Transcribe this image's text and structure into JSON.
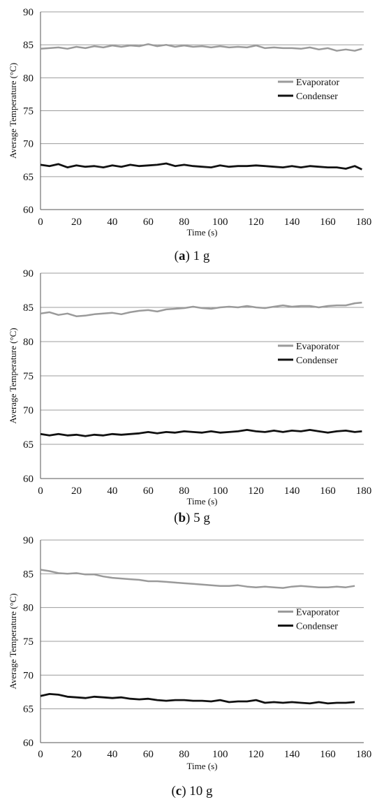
{
  "chart_data": [
    {
      "type": "line",
      "caption_letter": "a",
      "caption_suffix": " 1 g",
      "xlabel": "Time (s)",
      "ylabel": "Average Temperature (°C)",
      "xlim": [
        0,
        180
      ],
      "ylim": [
        60,
        90
      ],
      "xticks": [
        "0",
        "20",
        "40",
        "60",
        "80",
        "100",
        "120",
        "140",
        "160",
        "180"
      ],
      "yticks": [
        "60",
        "65",
        "70",
        "75",
        "80",
        "85",
        "90"
      ],
      "grid": "horizontal",
      "legend_position": "right",
      "x": [
        0,
        5,
        10,
        15,
        20,
        25,
        30,
        35,
        40,
        45,
        50,
        55,
        60,
        65,
        70,
        75,
        80,
        85,
        90,
        95,
        100,
        105,
        110,
        115,
        120,
        125,
        130,
        135,
        140,
        145,
        150,
        155,
        160,
        165,
        170,
        175,
        179
      ],
      "series": [
        {
          "name": "Evaporator",
          "color": "#9a9a9a",
          "values": [
            84.4,
            84.5,
            84.6,
            84.4,
            84.7,
            84.5,
            84.8,
            84.6,
            84.9,
            84.7,
            84.9,
            84.8,
            85.1,
            84.8,
            85.0,
            84.7,
            84.9,
            84.7,
            84.8,
            84.6,
            84.8,
            84.6,
            84.7,
            84.6,
            84.9,
            84.5,
            84.6,
            84.5,
            84.5,
            84.4,
            84.6,
            84.3,
            84.5,
            84.1,
            84.3,
            84.1,
            84.4
          ]
        },
        {
          "name": "Condenser",
          "color": "#111111",
          "values": [
            66.8,
            66.6,
            66.9,
            66.4,
            66.7,
            66.5,
            66.6,
            66.4,
            66.7,
            66.5,
            66.8,
            66.6,
            66.7,
            66.8,
            67.0,
            66.6,
            66.8,
            66.6,
            66.5,
            66.4,
            66.7,
            66.5,
            66.6,
            66.6,
            66.7,
            66.6,
            66.5,
            66.4,
            66.6,
            66.4,
            66.6,
            66.5,
            66.4,
            66.4,
            66.2,
            66.6,
            66.1
          ]
        }
      ]
    },
    {
      "type": "line",
      "caption_letter": "b",
      "caption_suffix": " 5 g",
      "xlabel": "Time (s)",
      "ylabel": "Average Temperature (°C)",
      "xlim": [
        0,
        180
      ],
      "ylim": [
        60,
        90
      ],
      "xticks": [
        "0",
        "20",
        "40",
        "60",
        "80",
        "100",
        "120",
        "140",
        "160",
        "180"
      ],
      "yticks": [
        "60",
        "65",
        "70",
        "75",
        "80",
        "85",
        "90"
      ],
      "grid": "horizontal",
      "legend_position": "right",
      "x": [
        0,
        5,
        10,
        15,
        20,
        25,
        30,
        35,
        40,
        45,
        50,
        55,
        60,
        65,
        70,
        75,
        80,
        85,
        90,
        95,
        100,
        105,
        110,
        115,
        120,
        125,
        130,
        135,
        140,
        145,
        150,
        155,
        160,
        165,
        170,
        175,
        179
      ],
      "series": [
        {
          "name": "Evaporator",
          "color": "#9a9a9a",
          "values": [
            84.1,
            84.3,
            83.9,
            84.1,
            83.7,
            83.8,
            84.0,
            84.1,
            84.2,
            84.0,
            84.3,
            84.5,
            84.6,
            84.4,
            84.7,
            84.8,
            84.9,
            85.1,
            84.9,
            84.8,
            85.0,
            85.1,
            85.0,
            85.2,
            85.0,
            84.9,
            85.1,
            85.3,
            85.1,
            85.2,
            85.2,
            85.0,
            85.2,
            85.3,
            85.3,
            85.6,
            85.7
          ]
        },
        {
          "name": "Condenser",
          "color": "#111111",
          "values": [
            66.5,
            66.3,
            66.5,
            66.3,
            66.4,
            66.2,
            66.4,
            66.3,
            66.5,
            66.4,
            66.5,
            66.6,
            66.8,
            66.6,
            66.8,
            66.7,
            66.9,
            66.8,
            66.7,
            66.9,
            66.7,
            66.8,
            66.9,
            67.1,
            66.9,
            66.8,
            67.0,
            66.8,
            67.0,
            66.9,
            67.1,
            66.9,
            66.7,
            66.9,
            67.0,
            66.8,
            66.9
          ]
        }
      ]
    },
    {
      "type": "line",
      "caption_letter": "c",
      "caption_suffix": " 10 g",
      "xlabel": "Time (s)",
      "ylabel": "Average Temperature (°C)",
      "xlim": [
        0,
        180
      ],
      "ylim": [
        60,
        90
      ],
      "xticks": [
        "0",
        "20",
        "40",
        "60",
        "80",
        "100",
        "120",
        "140",
        "160",
        "180"
      ],
      "yticks": [
        "60",
        "65",
        "70",
        "75",
        "80",
        "85",
        "90"
      ],
      "grid": "horizontal",
      "legend_position": "right",
      "x": [
        0,
        5,
        10,
        15,
        20,
        25,
        30,
        35,
        40,
        45,
        50,
        55,
        60,
        65,
        70,
        75,
        80,
        85,
        90,
        95,
        100,
        105,
        110,
        115,
        120,
        125,
        130,
        135,
        140,
        145,
        150,
        155,
        160,
        165,
        170,
        175
      ],
      "series": [
        {
          "name": "Evaporator",
          "color": "#9a9a9a",
          "values": [
            85.6,
            85.4,
            85.1,
            85.0,
            85.1,
            84.9,
            84.9,
            84.6,
            84.4,
            84.3,
            84.2,
            84.1,
            83.9,
            83.9,
            83.8,
            83.7,
            83.6,
            83.5,
            83.4,
            83.3,
            83.2,
            83.2,
            83.3,
            83.1,
            83.0,
            83.1,
            83.0,
            82.9,
            83.1,
            83.2,
            83.1,
            83.0,
            83.0,
            83.1,
            83.0,
            83.2
          ]
        },
        {
          "name": "Condenser",
          "color": "#111111",
          "values": [
            66.9,
            67.2,
            67.1,
            66.8,
            66.7,
            66.6,
            66.8,
            66.7,
            66.6,
            66.7,
            66.5,
            66.4,
            66.5,
            66.3,
            66.2,
            66.3,
            66.3,
            66.2,
            66.2,
            66.1,
            66.3,
            66.0,
            66.1,
            66.1,
            66.3,
            65.9,
            66.0,
            65.9,
            66.0,
            65.9,
            65.8,
            66.0,
            65.8,
            65.9,
            65.9,
            66.0
          ]
        }
      ]
    }
  ]
}
